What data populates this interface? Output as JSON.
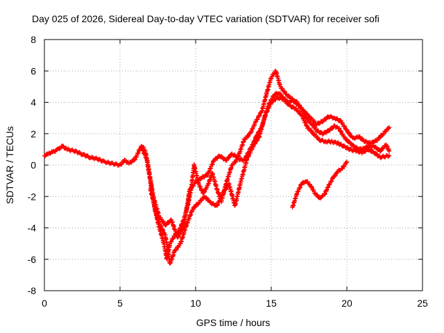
{
  "chart_data": {
    "type": "scatter",
    "title": "Day 025 of 2026, Sidereal Day-to-day VTEC variation (SDTVAR) for receiver sofi",
    "xlabel": "GPS time / hours",
    "ylabel": "SDTVAR / TECUs",
    "xlim": [
      0,
      25
    ],
    "ylim": [
      -8,
      8
    ],
    "x_ticks": [
      "0",
      "5",
      "10",
      "15",
      "20",
      "25"
    ],
    "y_ticks": [
      "-8",
      "-6",
      "-4",
      "-2",
      "0",
      "2",
      "4",
      "6",
      "8"
    ],
    "grid": true,
    "marker": "+",
    "colors": {
      "series": "#ff0000",
      "grid": "#a0a0a0",
      "axis": "#000000"
    },
    "series": [
      {
        "name": "main",
        "points": [
          [
            0,
            0.6
          ],
          [
            0.3,
            0.75
          ],
          [
            0.6,
            0.85
          ],
          [
            0.9,
            1.0
          ],
          [
            1.2,
            1.2
          ],
          [
            1.5,
            1.0
          ],
          [
            2.0,
            0.9
          ],
          [
            2.5,
            0.7
          ],
          [
            3.0,
            0.5
          ],
          [
            3.5,
            0.4
          ],
          [
            4.0,
            0.2
          ],
          [
            4.5,
            0.1
          ],
          [
            5.0,
            0.0
          ],
          [
            5.3,
            0.3
          ],
          [
            5.6,
            0.1
          ],
          [
            6.0,
            0.4
          ],
          [
            6.3,
            1.0
          ],
          [
            6.5,
            1.2
          ],
          [
            6.7,
            0.8
          ],
          [
            7.0,
            -1.0
          ],
          [
            7.3,
            -2.8
          ],
          [
            7.6,
            -4.0
          ],
          [
            7.9,
            -5.0
          ],
          [
            8.1,
            -6.0
          ],
          [
            8.3,
            -5.0
          ],
          [
            8.6,
            -4.5
          ],
          [
            8.9,
            -4.2
          ],
          [
            9.2,
            -3.5
          ],
          [
            9.5,
            -2.5
          ],
          [
            9.7,
            -1.5
          ],
          [
            9.9,
            0.0
          ],
          [
            10.2,
            -1.2
          ],
          [
            10.5,
            -1.8
          ],
          [
            10.8,
            -1.3
          ],
          [
            11.1,
            -0.5
          ],
          [
            11.4,
            -1.5
          ],
          [
            11.7,
            -2.3
          ],
          [
            12.0,
            -1.2
          ],
          [
            12.4,
            0.0
          ],
          [
            12.8,
            0.4
          ],
          [
            13.2,
            0.3
          ],
          [
            13.6,
            1.0
          ],
          [
            14.0,
            1.8
          ],
          [
            14.4,
            2.5
          ],
          [
            14.8,
            3.8
          ],
          [
            15.2,
            4.5
          ],
          [
            15.5,
            4.6
          ],
          [
            15.8,
            4.3
          ],
          [
            16.1,
            4.0
          ],
          [
            16.4,
            4.1
          ],
          [
            16.7,
            4.0
          ],
          [
            17.0,
            3.6
          ],
          [
            17.3,
            3.0
          ],
          [
            17.7,
            2.6
          ],
          [
            18.0,
            2.2
          ],
          [
            18.4,
            2.0
          ],
          [
            18.8,
            2.2
          ],
          [
            19.2,
            2.5
          ],
          [
            19.5,
            2.3
          ],
          [
            19.8,
            1.8
          ],
          [
            20.2,
            1.4
          ],
          [
            20.6,
            1.1
          ],
          [
            21.0,
            1.0
          ],
          [
            21.4,
            1.2
          ],
          [
            21.8,
            1.2
          ],
          [
            22.2,
            0.9
          ],
          [
            22.6,
            1.3
          ],
          [
            22.8,
            0.9
          ]
        ]
      },
      {
        "name": "upper-track",
        "points": [
          [
            6.4,
            1.2
          ],
          [
            6.8,
            0.3
          ],
          [
            7.2,
            -2.0
          ],
          [
            7.6,
            -3.3
          ],
          [
            8.0,
            -3.8
          ],
          [
            8.4,
            -3.5
          ],
          [
            8.8,
            -4.6
          ],
          [
            9.2,
            -4.0
          ],
          [
            9.6,
            -1.6
          ],
          [
            10.0,
            -1.1
          ],
          [
            10.4,
            -0.8
          ],
          [
            10.8,
            -0.6
          ],
          [
            11.2,
            0.3
          ],
          [
            11.6,
            0.6
          ],
          [
            12.0,
            0.3
          ],
          [
            12.4,
            0.7
          ],
          [
            12.8,
            0.5
          ],
          [
            13.2,
            1.6
          ],
          [
            13.6,
            2.0
          ],
          [
            14.0,
            2.8
          ],
          [
            14.4,
            3.5
          ],
          [
            14.7,
            4.6
          ],
          [
            15.0,
            5.6
          ],
          [
            15.3,
            6.0
          ],
          [
            15.6,
            5.0
          ],
          [
            16.0,
            4.5
          ],
          [
            16.4,
            4.2
          ],
          [
            16.8,
            3.8
          ],
          [
            17.2,
            3.4
          ],
          [
            17.6,
            3.0
          ],
          [
            18.0,
            2.6
          ],
          [
            18.4,
            2.8
          ],
          [
            18.8,
            3.1
          ],
          [
            19.2,
            3.0
          ],
          [
            19.6,
            2.8
          ],
          [
            20.0,
            2.2
          ],
          [
            20.4,
            1.7
          ],
          [
            20.8,
            1.8
          ],
          [
            21.2,
            1.5
          ],
          [
            21.6,
            1.4
          ],
          [
            22.0,
            1.6
          ],
          [
            22.4,
            2.0
          ],
          [
            22.8,
            2.4
          ]
        ]
      },
      {
        "name": "lower-track",
        "points": [
          [
            7.0,
            -1.5
          ],
          [
            7.5,
            -3.5
          ],
          [
            8.0,
            -4.5
          ],
          [
            8.3,
            -6.3
          ],
          [
            8.6,
            -5.5
          ],
          [
            9.0,
            -5.0
          ],
          [
            9.4,
            -3.8
          ],
          [
            9.8,
            -2.8
          ],
          [
            10.2,
            -2.4
          ],
          [
            10.6,
            -2.0
          ],
          [
            11.0,
            -2.4
          ],
          [
            11.4,
            -2.6
          ],
          [
            11.8,
            -1.8
          ],
          [
            12.2,
            -1.2
          ],
          [
            12.6,
            -2.6
          ],
          [
            13.0,
            -1.0
          ],
          [
            13.4,
            0.4
          ],
          [
            13.8,
            1.2
          ],
          [
            14.2,
            1.8
          ],
          [
            14.6,
            3.2
          ],
          [
            15.0,
            4.0
          ],
          [
            15.4,
            4.3
          ],
          [
            15.8,
            4.2
          ],
          [
            16.2,
            3.8
          ],
          [
            16.6,
            3.6
          ],
          [
            17.0,
            3.2
          ],
          [
            17.4,
            2.4
          ],
          [
            17.8,
            2.0
          ],
          [
            18.2,
            1.6
          ],
          [
            18.6,
            1.5
          ],
          [
            19.0,
            1.5
          ],
          [
            19.4,
            1.4
          ],
          [
            19.8,
            1.2
          ],
          [
            20.2,
            1.0
          ],
          [
            20.6,
            0.9
          ],
          [
            21.0,
            0.8
          ],
          [
            21.4,
            1.0
          ],
          [
            21.8,
            0.8
          ],
          [
            22.2,
            0.5
          ],
          [
            22.8,
            0.6
          ]
        ]
      },
      {
        "name": "isolated-track",
        "points": [
          [
            16.4,
            -2.7
          ],
          [
            16.7,
            -1.8
          ],
          [
            17.0,
            -1.2
          ],
          [
            17.3,
            -1.0
          ],
          [
            17.6,
            -1.3
          ],
          [
            17.9,
            -1.8
          ],
          [
            18.2,
            -2.1
          ],
          [
            18.5,
            -1.9
          ],
          [
            18.8,
            -1.3
          ],
          [
            19.1,
            -0.8
          ],
          [
            19.4,
            -0.4
          ],
          [
            19.7,
            -0.2
          ],
          [
            20.0,
            0.2
          ]
        ]
      }
    ]
  }
}
